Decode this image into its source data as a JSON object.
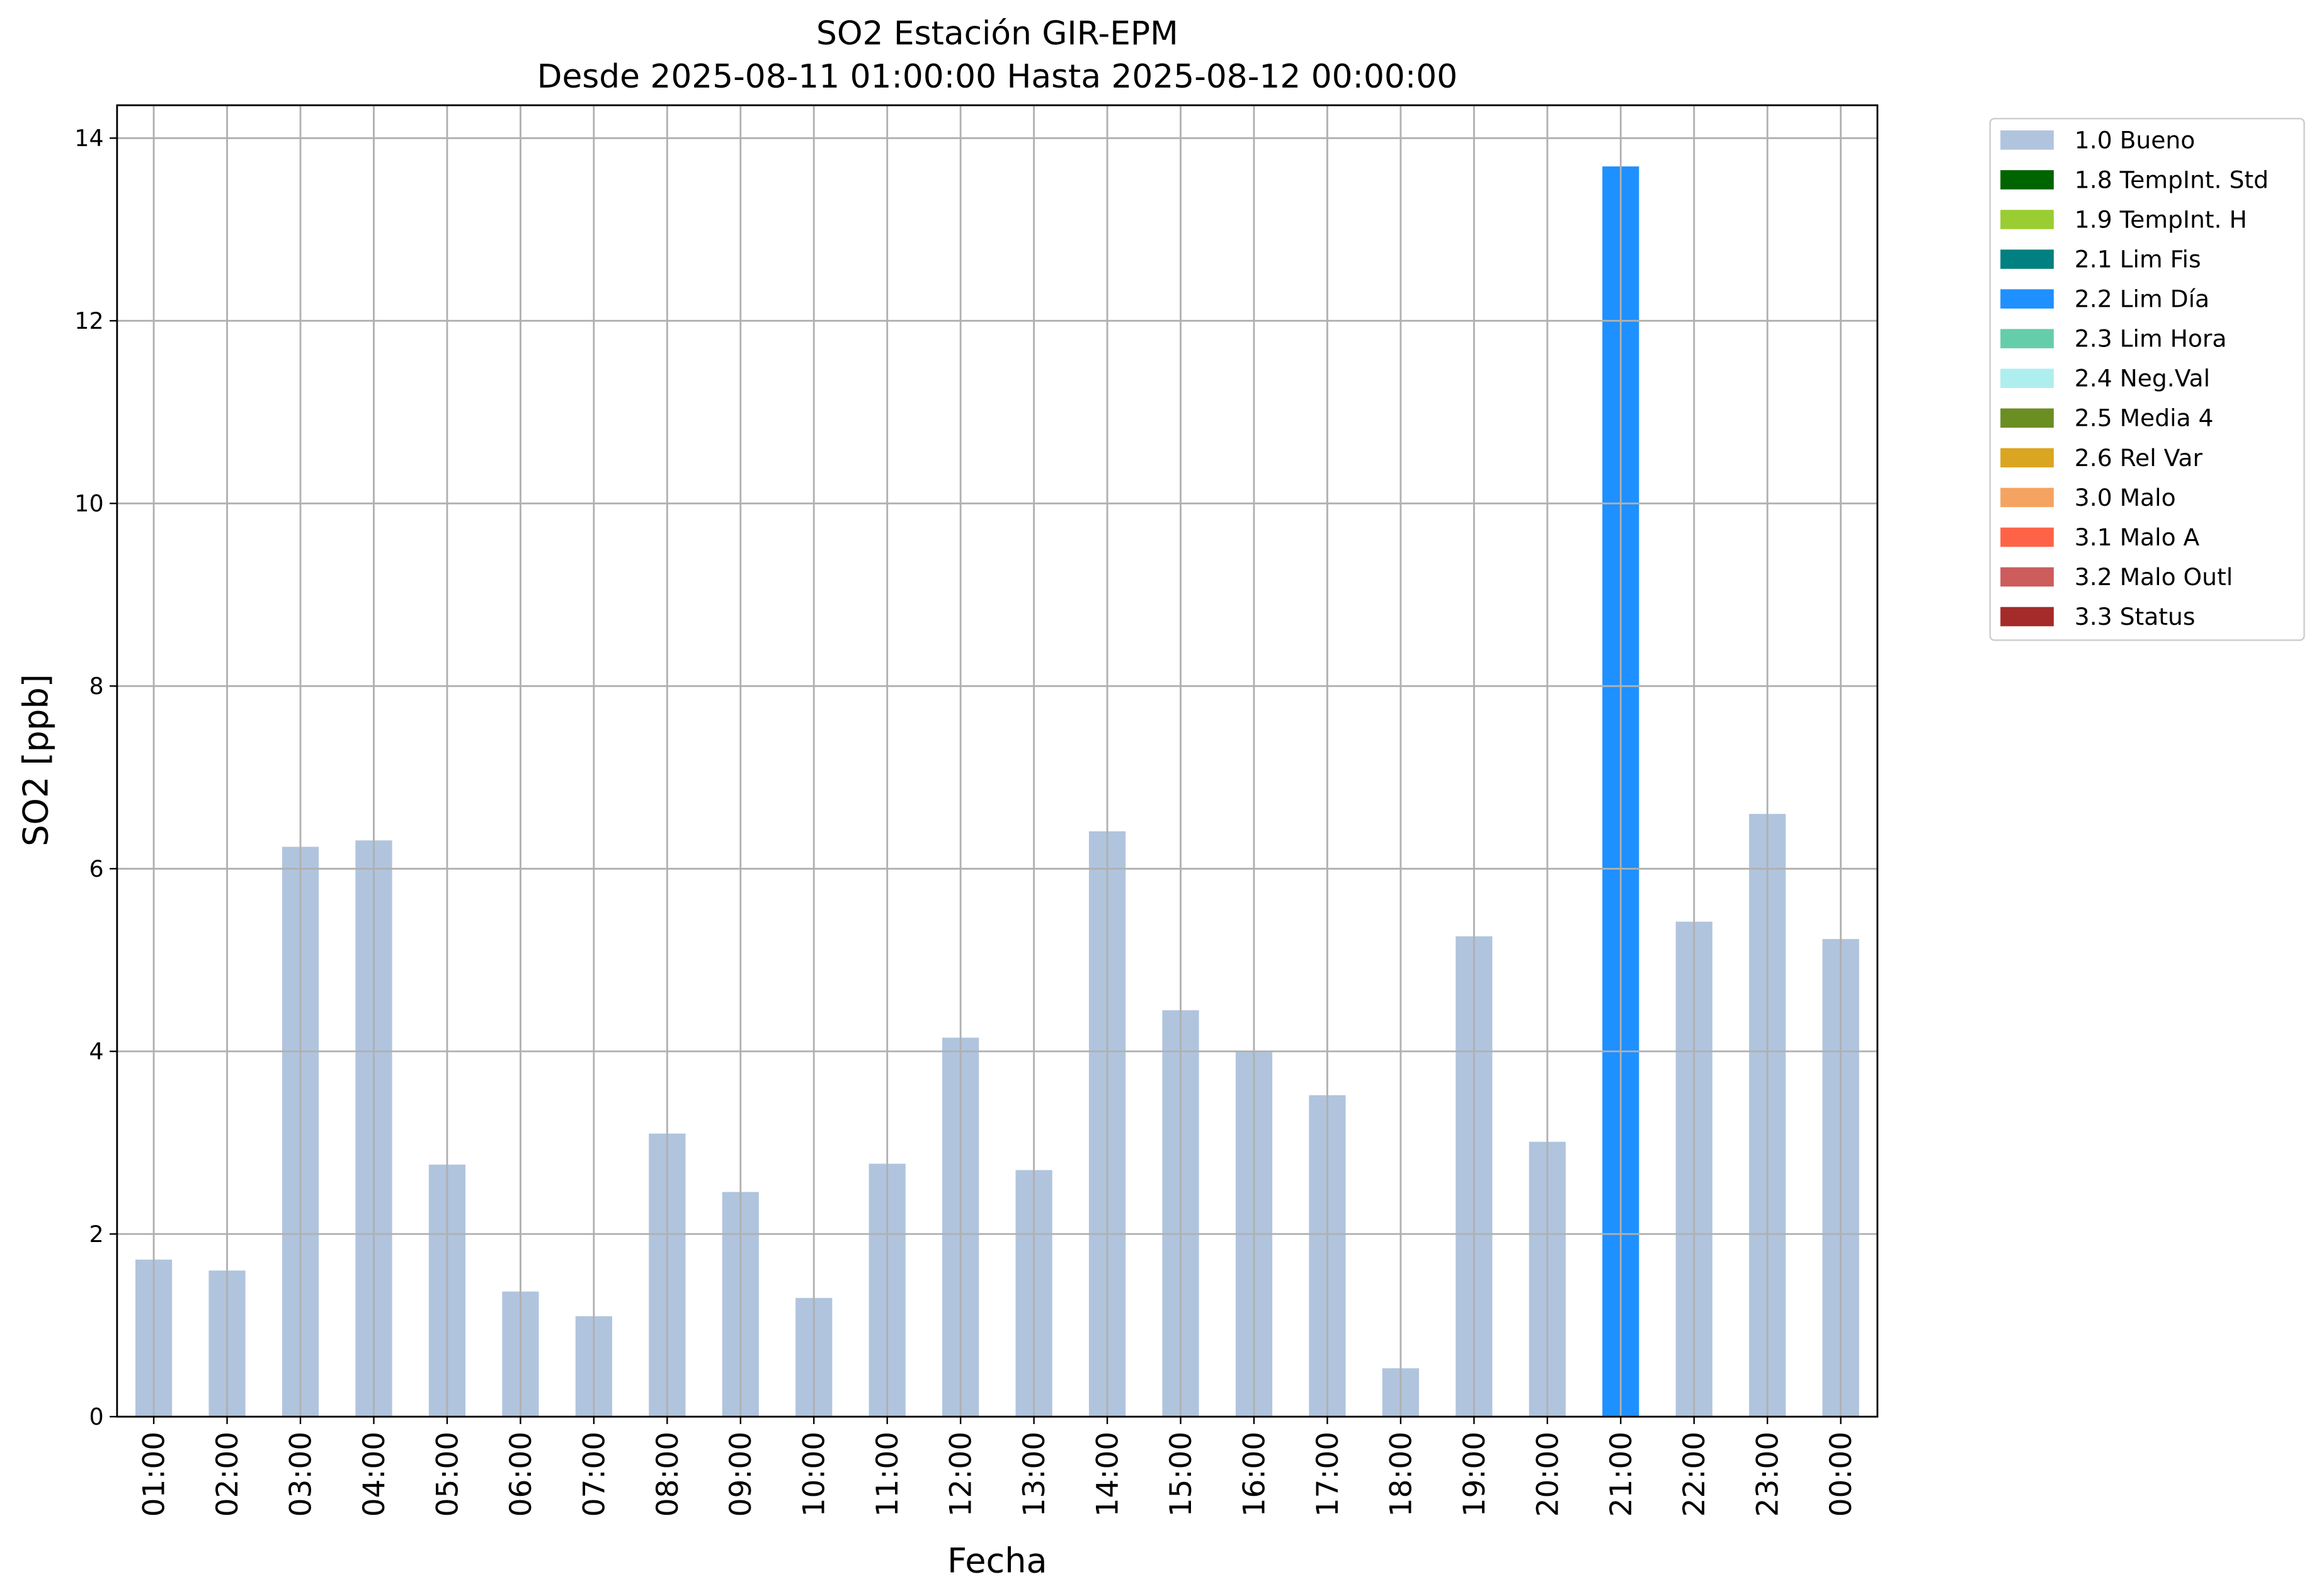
{
  "chart_data": {
    "type": "bar",
    "stacked": true,
    "title": "SO2 Estación GIR-EPM",
    "subtitle": "Desde 2025-08-11 01:00:00 Hasta 2025-08-12 00:00:00",
    "x_label": "Fecha",
    "y_label": "SO2 [ppb]",
    "categories": [
      "01:00",
      "02:00",
      "03:00",
      "04:00",
      "05:00",
      "06:00",
      "07:00",
      "08:00",
      "09:00",
      "10:00",
      "11:00",
      "12:00",
      "13:00",
      "14:00",
      "15:00",
      "16:00",
      "17:00",
      "18:00",
      "19:00",
      "20:00",
      "21:00",
      "22:00",
      "23:00",
      "00:00"
    ],
    "series": [
      {
        "name": "1.0 Bueno",
        "color": "#b0c4de",
        "values": [
          1.72,
          1.6,
          6.24,
          6.31,
          2.76,
          1.37,
          1.1,
          3.1,
          2.46,
          1.3,
          2.77,
          4.15,
          2.7,
          6.41,
          4.45,
          4.0,
          3.52,
          0.53,
          5.26,
          3.01,
          null,
          5.42,
          6.6,
          5.23
        ]
      },
      {
        "name": "1.8 TempInt. Std",
        "color": "#006400",
        "values": [
          null,
          null,
          null,
          null,
          null,
          null,
          null,
          null,
          null,
          null,
          null,
          null,
          null,
          null,
          null,
          null,
          null,
          null,
          null,
          null,
          null,
          null,
          null,
          null
        ]
      },
      {
        "name": "1.9 TempInt. H",
        "color": "#9acd32",
        "values": [
          null,
          null,
          null,
          null,
          null,
          null,
          null,
          null,
          null,
          null,
          null,
          null,
          null,
          null,
          null,
          null,
          null,
          null,
          null,
          null,
          null,
          null,
          null,
          null
        ]
      },
      {
        "name": "2.1 Lim Fis",
        "color": "#008080",
        "values": [
          null,
          null,
          null,
          null,
          null,
          null,
          null,
          null,
          null,
          null,
          null,
          null,
          null,
          null,
          null,
          null,
          null,
          null,
          null,
          null,
          null,
          null,
          null,
          null
        ]
      },
      {
        "name": "2.2 Lim Día",
        "color": "#1e90ff",
        "values": [
          null,
          null,
          null,
          null,
          null,
          null,
          null,
          null,
          null,
          null,
          null,
          null,
          null,
          null,
          null,
          null,
          null,
          null,
          null,
          null,
          13.69,
          null,
          null,
          null
        ]
      },
      {
        "name": "2.3 Lim Hora",
        "color": "#66cdaa",
        "values": [
          null,
          null,
          null,
          null,
          null,
          null,
          null,
          null,
          null,
          null,
          null,
          null,
          null,
          null,
          null,
          null,
          null,
          null,
          null,
          null,
          null,
          null,
          null,
          null
        ]
      },
      {
        "name": "2.4 Neg.Val",
        "color": "#afeeee",
        "values": [
          null,
          null,
          null,
          null,
          null,
          null,
          null,
          null,
          null,
          null,
          null,
          null,
          null,
          null,
          null,
          null,
          null,
          null,
          null,
          null,
          null,
          null,
          null,
          null
        ]
      },
      {
        "name": "2.5 Media 4",
        "color": "#6b8e23",
        "values": [
          null,
          null,
          null,
          null,
          null,
          null,
          null,
          null,
          null,
          null,
          null,
          null,
          null,
          null,
          null,
          null,
          null,
          null,
          null,
          null,
          null,
          null,
          null,
          null
        ]
      },
      {
        "name": "2.6 Rel Var",
        "color": "#daa520",
        "values": [
          null,
          null,
          null,
          null,
          null,
          null,
          null,
          null,
          null,
          null,
          null,
          null,
          null,
          null,
          null,
          null,
          null,
          null,
          null,
          null,
          null,
          null,
          null,
          null
        ]
      },
      {
        "name": "3.0 Malo",
        "color": "#f4a460",
        "values": [
          null,
          null,
          null,
          null,
          null,
          null,
          null,
          null,
          null,
          null,
          null,
          null,
          null,
          null,
          null,
          null,
          null,
          null,
          null,
          null,
          null,
          null,
          null,
          null
        ]
      },
      {
        "name": "3.1 Malo A",
        "color": "#ff6347",
        "values": [
          null,
          null,
          null,
          null,
          null,
          null,
          null,
          null,
          null,
          null,
          null,
          null,
          null,
          null,
          null,
          null,
          null,
          null,
          null,
          null,
          null,
          null,
          null,
          null
        ]
      },
      {
        "name": "3.2 Malo Outl",
        "color": "#cd5c5c",
        "values": [
          null,
          null,
          null,
          null,
          null,
          null,
          null,
          null,
          null,
          null,
          null,
          null,
          null,
          null,
          null,
          null,
          null,
          null,
          null,
          null,
          null,
          null,
          null,
          null
        ]
      },
      {
        "name": "3.3 Status",
        "color": "#a52a2a",
        "values": [
          null,
          null,
          null,
          null,
          null,
          null,
          null,
          null,
          null,
          null,
          null,
          null,
          null,
          null,
          null,
          null,
          null,
          null,
          null,
          null,
          null,
          null,
          null,
          null
        ]
      }
    ],
    "ylim": [
      0,
      14.36
    ],
    "yticks": [
      0,
      2,
      4,
      6,
      8,
      10,
      12,
      14
    ],
    "grid": true,
    "legend": "outside-upper-right"
  }
}
